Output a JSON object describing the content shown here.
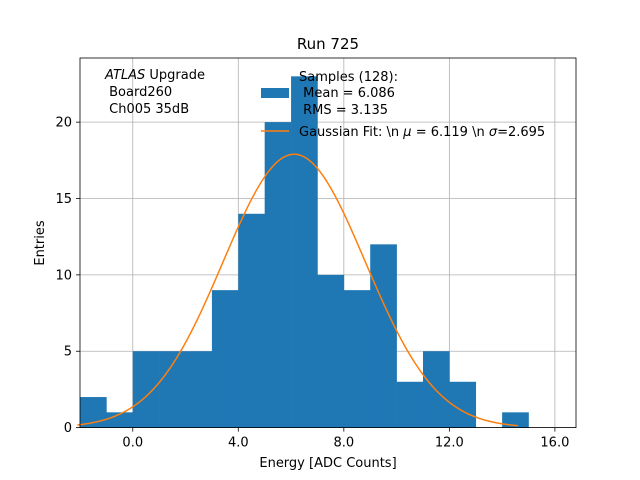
{
  "chart_data": {
    "type": "bar",
    "title": "Run 725",
    "xlabel": "Energy [ADC Counts]",
    "ylabel": "Entries",
    "xlim": [
      -2.0,
      16.8
    ],
    "ylim": [
      0,
      24.2
    ],
    "grid": true,
    "x_ticks": [
      0,
      4,
      8,
      12,
      16
    ],
    "x_tick_labels": [
      "0.0",
      "4.0",
      "8.0",
      "12.0",
      "16.0"
    ],
    "y_ticks": [
      0,
      5,
      10,
      15,
      20
    ],
    "y_tick_labels": [
      "0",
      "5",
      "10",
      "15",
      "20"
    ],
    "bin_width": 1,
    "bin_edges": [
      -2,
      -1,
      0,
      1,
      2,
      3,
      4,
      5,
      6,
      7,
      8,
      9,
      10,
      11,
      12,
      13,
      14,
      15
    ],
    "counts": [
      2,
      1,
      5,
      5,
      5,
      9,
      14,
      20,
      23,
      10,
      9,
      12,
      3,
      5,
      3,
      0,
      1
    ],
    "bar_color": "#1f77b4",
    "fit": {
      "type": "gaussian",
      "amplitude": 17.9,
      "mu": 6.119,
      "sigma": 2.695,
      "x_range": [
        -2.1,
        14.6
      ],
      "color": "#ff7f0e"
    },
    "annotation": {
      "lines": [
        "ATLAS Upgrade",
        " Board260",
        " Ch005 35dB"
      ],
      "italic_word": "ATLAS",
      "rest_of_first_line": " Upgrade"
    },
    "legend": {
      "placement": "top-center",
      "histogram_label_lines": [
        "Samples (128):",
        " Mean = 6.086",
        " RMS = 3.135"
      ],
      "fit_label_prefix": "Gaussian Fit: \\n ",
      "fit_mu_symbol": "μ",
      "fit_mu_text": " = 6.119 \\n ",
      "fit_sigma_symbol": "σ",
      "fit_sigma_text": "=2.695"
    }
  }
}
